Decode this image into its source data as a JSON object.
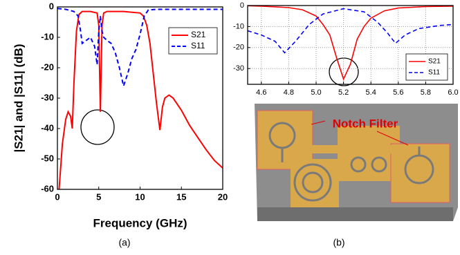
{
  "chart_data": [
    {
      "type": "line",
      "xlabel": "Frequency (GHz)",
      "ylabel": "|S21| and |S11| (dB)",
      "xlim": [
        0,
        20
      ],
      "ylim": [
        -60,
        0
      ],
      "xticks": [
        0,
        5,
        10,
        15,
        20
      ],
      "yticks": [
        -60,
        -50,
        -40,
        -30,
        -20,
        -10,
        0
      ],
      "grid": false,
      "legend": "upper right",
      "series": [
        {
          "name": "S21",
          "color": "#ff0000",
          "dash": "solid",
          "x": [
            0.2,
            0.6,
            1.0,
            1.3,
            1.6,
            1.8,
            2.0,
            2.3,
            2.6,
            3.0,
            4.0,
            4.8,
            5.0,
            5.1,
            5.2,
            5.3,
            5.4,
            5.6,
            6,
            8,
            10,
            10.4,
            10.8,
            11.2,
            11.6,
            12.0,
            12.4,
            12.7,
            13.0,
            13.5,
            14,
            15,
            16,
            17,
            18,
            19,
            20
          ],
          "values": [
            -60,
            -45,
            -37,
            -34.5,
            -36,
            -40,
            -25,
            -8,
            -2.5,
            -1.5,
            -1.5,
            -2,
            -6,
            -20,
            -34.5,
            -20,
            -6,
            -2,
            -1.5,
            -1.5,
            -2,
            -3,
            -6,
            -12,
            -22,
            -32,
            -40.5,
            -33,
            -30,
            -29,
            -30,
            -34,
            -39,
            -43,
            -47,
            -50.5,
            -53
          ]
        },
        {
          "name": "S11",
          "color": "#0000ff",
          "dash": "dashed",
          "x": [
            0,
            1,
            2,
            2.5,
            2.8,
            3.0,
            3.5,
            4.0,
            4.5,
            4.8,
            5.0,
            5.2,
            5.4,
            5.6,
            6.0,
            6.5,
            7.0,
            7.5,
            8.0,
            8.5,
            9.0,
            9.5,
            10.0,
            10.5,
            11.0,
            12,
            15,
            20
          ],
          "values": [
            -0.5,
            -0.8,
            -1.5,
            -3,
            -8,
            -12,
            -11,
            -10,
            -13,
            -19,
            -8,
            -3,
            -8,
            -10,
            -11,
            -12,
            -15,
            -20,
            -26,
            -22,
            -17,
            -14,
            -9,
            -3,
            -1,
            -0.8,
            -0.8,
            -0.8
          ]
        }
      ]
    },
    {
      "type": "line",
      "xlim": [
        4.5,
        6.0
      ],
      "ylim": [
        -37.5,
        0
      ],
      "xticks": [
        4.6,
        4.8,
        {
          "value": 5,
          "label": "5.0"
        },
        5.2,
        5.4,
        5.6,
        5.8,
        {
          "value": 6,
          "label": "6.0"
        }
      ],
      "yticks": [
        -30,
        -20,
        -10,
        0
      ],
      "grid": true,
      "legend": "lower right",
      "series": [
        {
          "name": "S21",
          "color": "#ff0000",
          "dash": "solid",
          "x": [
            4.5,
            4.6,
            4.8,
            4.9,
            5.0,
            5.05,
            5.1,
            5.15,
            5.2,
            5.25,
            5.3,
            5.35,
            5.4,
            5.5,
            5.6,
            5.8,
            6.0
          ],
          "values": [
            -0.1,
            -0.3,
            -1,
            -2,
            -5,
            -9,
            -14,
            -25,
            -35,
            -28,
            -16,
            -10,
            -6,
            -2.5,
            -1.2,
            -0.5,
            -0.3
          ]
        },
        {
          "name": "S11",
          "color": "#0000ff",
          "dash": "dashed",
          "x": [
            4.5,
            4.6,
            4.7,
            4.77,
            4.85,
            4.95,
            5.05,
            5.2,
            5.35,
            5.45,
            5.52,
            5.58,
            5.65,
            5.75,
            5.9,
            6.0
          ],
          "values": [
            -12,
            -14,
            -17,
            -22.5,
            -17,
            -9,
            -4,
            -1.5,
            -3,
            -8,
            -13,
            -18,
            -14,
            -11,
            -9.5,
            -9
          ]
        }
      ]
    }
  ],
  "panel_labels": [
    "(a)",
    "(b)"
  ],
  "photo": {
    "annotation": "Notch Filter"
  }
}
